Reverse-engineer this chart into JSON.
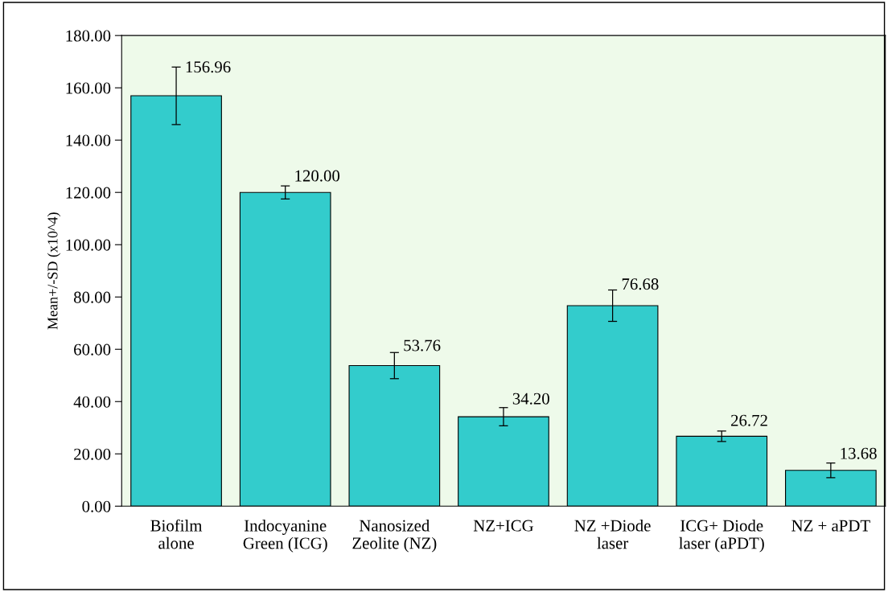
{
  "chart_data": {
    "type": "bar",
    "ylabel": "Mean+/-SD (x10^4)",
    "categories": [
      "Biofilm\nalone",
      "Indocyanine\nGreen (ICG)",
      "Nanosized\nZeolite (NZ)",
      "NZ+ICG",
      "NZ +Diode\nlaser",
      "ICG+ Diode\nlaser (aPDT)",
      "NZ + aPDT"
    ],
    "values": [
      156.96,
      120.0,
      53.76,
      34.2,
      76.68,
      26.72,
      13.68
    ],
    "value_labels": [
      "156.96",
      "120.00",
      "53.76",
      "34.20",
      "76.68",
      "26.72",
      "13.68"
    ],
    "errors": [
      11,
      2.5,
      5,
      3.5,
      6,
      2,
      2.8
    ],
    "color": "#33cccc",
    "ylim": [
      0,
      180
    ],
    "yticks": [
      {
        "value": 0,
        "label": "0.00"
      },
      {
        "value": 20,
        "label": "20.00"
      },
      {
        "value": 40,
        "label": "40.00"
      },
      {
        "value": 60,
        "label": "60.00"
      },
      {
        "value": 80,
        "label": "80.00"
      },
      {
        "value": 100,
        "label": "100.00"
      },
      {
        "value": 120,
        "label": "120.00"
      },
      {
        "value": 140,
        "label": "140.00"
      },
      {
        "value": 160,
        "label": "160.00"
      },
      {
        "value": 180,
        "label": "180.00"
      }
    ],
    "grid": false,
    "legend": false
  }
}
